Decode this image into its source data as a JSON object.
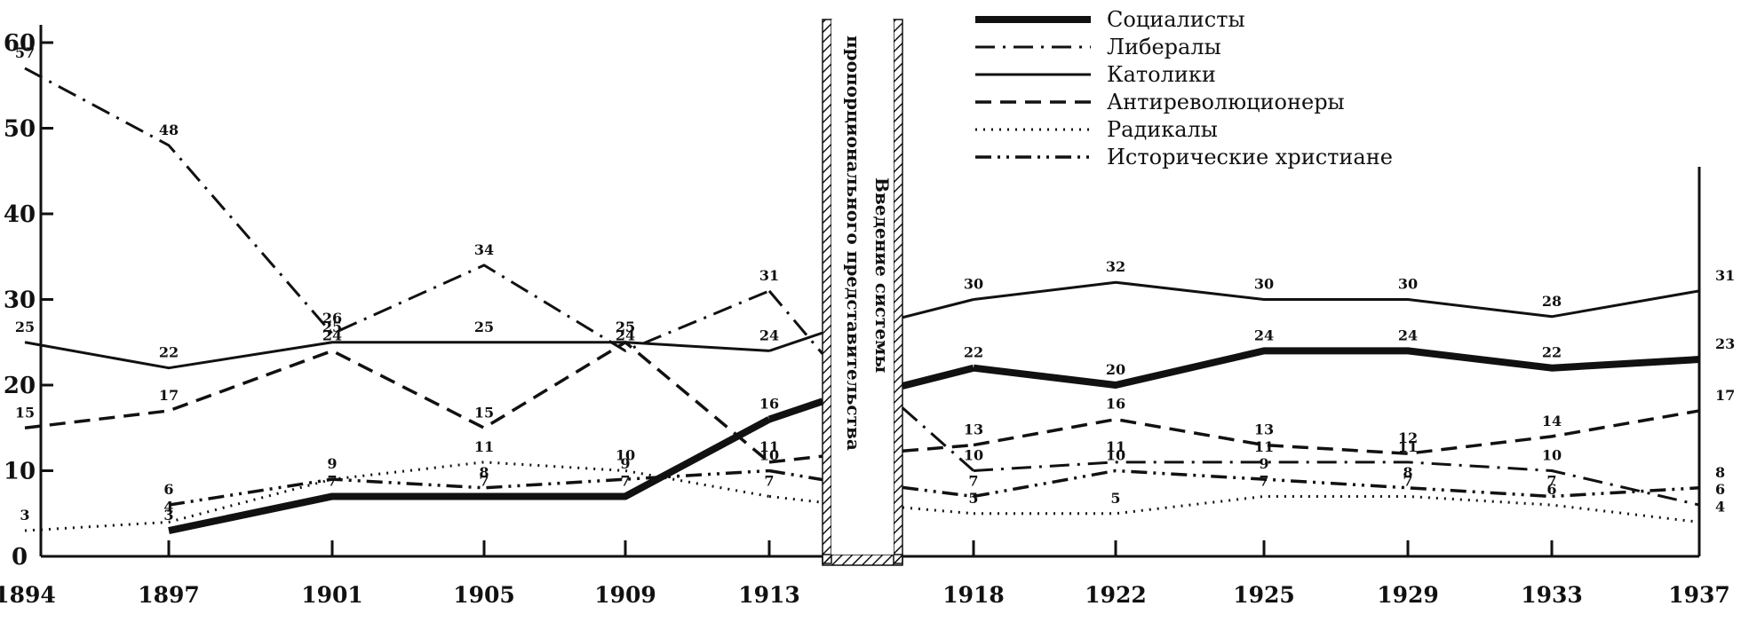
{
  "chart_data": {
    "type": "line",
    "x": [
      1894,
      1897,
      1901,
      1905,
      1909,
      1913,
      1918,
      1922,
      1925,
      1929,
      1933,
      1937
    ],
    "y_ticks": [
      0,
      10,
      20,
      30,
      40,
      50,
      60
    ],
    "ylim": [
      0,
      63
    ],
    "grid": false,
    "legend_position": "top-center",
    "annotation": {
      "lines": [
        "Введение системы",
        "пропорционального представительства"
      ],
      "between": [
        1913,
        1918
      ]
    },
    "series": [
      {
        "name": "Социалисты",
        "style": "double",
        "color": "#111111",
        "values": [
          null,
          3,
          7,
          7,
          7,
          16,
          22,
          20,
          24,
          24,
          22,
          23
        ],
        "labels": [
          "",
          "3",
          "7",
          "7",
          "7",
          "16",
          "22",
          "20",
          "24",
          "24",
          "22",
          "23"
        ]
      },
      {
        "name": "Либералы",
        "style": "dashdot",
        "color": "#111111",
        "values": [
          57,
          48,
          26,
          34,
          24,
          31,
          10,
          11,
          11,
          11,
          10,
          6
        ],
        "labels": [
          "57",
          "48",
          "26",
          "34",
          "24",
          "31",
          "10",
          "11",
          "11",
          "11",
          "10",
          "6"
        ]
      },
      {
        "name": "Католики",
        "style": "solid",
        "color": "#111111",
        "values": [
          25,
          22,
          25,
          25,
          25,
          24,
          30,
          32,
          30,
          30,
          28,
          31
        ],
        "labels": [
          "25",
          "22",
          "25",
          "25",
          "25",
          "24",
          "30",
          "32",
          "30",
          "30",
          "28",
          "31"
        ]
      },
      {
        "name": "Антиреволюционеры",
        "style": "dash",
        "color": "#111111",
        "values": [
          15,
          17,
          24,
          15,
          25,
          11,
          13,
          16,
          13,
          12,
          14,
          17
        ],
        "labels": [
          "15",
          "17",
          "24",
          "15",
          "25",
          "11",
          "13",
          "16",
          "13",
          "12",
          "14",
          "17"
        ]
      },
      {
        "name": "Радикалы",
        "style": "dotted",
        "color": "#111111",
        "values": [
          3,
          4,
          9,
          11,
          10,
          7,
          5,
          5,
          7,
          7,
          6,
          4
        ],
        "labels": [
          "3",
          "4",
          "9",
          "11",
          "10",
          "7",
          "5",
          "5",
          "7",
          "7",
          "6",
          "4"
        ]
      },
      {
        "name": "Исторические христиане",
        "style": "dashdotdot",
        "color": "#111111",
        "values": [
          null,
          6,
          9,
          8,
          9,
          10,
          7,
          10,
          9,
          8,
          7,
          8
        ],
        "labels": [
          "",
          "6",
          "",
          "8",
          "9",
          "10",
          "7",
          "10",
          "9",
          "8",
          "7",
          "8"
        ]
      }
    ]
  }
}
